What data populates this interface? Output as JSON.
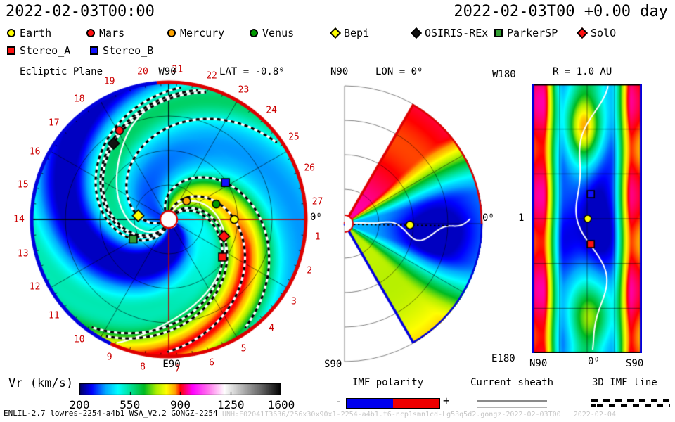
{
  "header": {
    "model_time": "2022-02-03T00:00",
    "forecast_time": "2022-02-03T00 +0.00 day"
  },
  "bodies": [
    {
      "label": "Earth",
      "marker": "circle",
      "color": "#ffff00",
      "imf": true,
      "ecl": {
        "r": 1.0,
        "lon": 0
      },
      "mer": {
        "r": 1.0,
        "lat": -0.8
      },
      "map": {
        "lon": 0,
        "lat": -1
      }
    },
    {
      "label": "Mars",
      "marker": "circle",
      "color": "#ff1111",
      "imf": true,
      "ecl": {
        "r": 1.55,
        "lon": 119
      }
    },
    {
      "label": "Mercury",
      "marker": "circle",
      "color": "#ffa500",
      "imf": false,
      "ecl": {
        "r": 0.39,
        "lon": 46
      }
    },
    {
      "label": "Venus",
      "marker": "circle",
      "color": "#009900",
      "imf": false,
      "ecl": {
        "r": 0.76,
        "lon": 18
      }
    },
    {
      "label": "Bepi",
      "marker": "diamond",
      "color": "#ffff00",
      "imf": true,
      "ecl": {
        "r": 0.47,
        "lon": 173
      }
    },
    {
      "label": "OSIRIS-REx",
      "marker": "diamond",
      "color": "#111111",
      "imf": true,
      "ecl": {
        "r": 1.43,
        "lon": 126
      }
    },
    {
      "label": "ParkerSP",
      "marker": "square",
      "color": "#33a033",
      "imf": true,
      "ecl": {
        "r": 0.62,
        "lon": 209
      }
    },
    {
      "label": "SolO",
      "marker": "diamond",
      "color": "#ff1111",
      "imf": true,
      "ecl": {
        "r": 0.88,
        "lon": -17
      }
    },
    {
      "label": "Stereo_A",
      "marker": "square",
      "color": "#ff1111",
      "imf": true,
      "ecl": {
        "r": 1.0,
        "lon": -35
      },
      "map": {
        "lon": -34,
        "lat": -6
      }
    },
    {
      "label": "Stereo_B",
      "marker": "square",
      "color": "#1111ff",
      "imf": true,
      "ecl": {
        "r": 1.03,
        "lon": 33
      },
      "map": {
        "lon": 33,
        "lat": -6
      }
    }
  ],
  "panels": {
    "ecliptic": {
      "title": "Ecliptic Plane",
      "top_label": "W90",
      "bottom_label": "E90",
      "lat_label": "LAT = -0.8⁰",
      "lon_zero_label": "0⁰"
    },
    "meridional": {
      "north_label": "N90",
      "title": "LON = 0⁰",
      "south_label": "S90",
      "lon_zero_label": "0⁰"
    },
    "synoptic": {
      "title": "R = 1.0 AU",
      "top_left_label": "W180",
      "bottom_left_label": "E180",
      "axis_labels": [
        "N90",
        "0⁰",
        "S90"
      ],
      "radius_tick": "1"
    }
  },
  "colorbar": {
    "label": "Vr (km/s)",
    "ticks": [
      "200",
      "550",
      "900",
      "1250",
      "1600"
    ]
  },
  "legend_boxes": {
    "imf": {
      "label": "IMF polarity",
      "minus": "-",
      "plus": "+",
      "neg_color": "#0000ee",
      "pos_color": "#ee0000"
    },
    "sheath": {
      "label": "Current sheath"
    },
    "imf_line": {
      "label": "3D IMF line"
    }
  },
  "footer": {
    "model_info": "ENLIL-2.7 lowres-2254-a4b1 WSA_V2.2 GONGZ-2254",
    "watermark": "UNH:E02041I3636/256x30x90x1-2254-a4b1.t6-ncp1smn1cd-Lg53q5d2.gongz-2022-02-03T00   2022-02-04"
  },
  "chart_data": [
    {
      "type": "heatmap",
      "projection": "polar-ecliptic",
      "title": "Ecliptic Plane",
      "quantity": "Vr",
      "units": "km/s",
      "vmin": 200,
      "vmax": 1600,
      "r_max_au": 2.1,
      "lat_deg": -0.8,
      "day_labels": [
        1,
        2,
        3,
        4,
        5,
        6,
        7,
        8,
        9,
        10,
        11,
        12,
        13,
        14,
        15,
        16,
        17,
        18,
        19,
        20,
        21,
        22,
        23,
        24,
        25,
        26,
        27
      ],
      "colorbar": {
        "label": "Vr (km/s)",
        "ticks": [
          200,
          550,
          900,
          1250,
          1600
        ]
      },
      "palette_stops": [
        [
          0.0,
          "#000066"
        ],
        [
          0.06,
          "#0000ff"
        ],
        [
          0.13,
          "#00aaff"
        ],
        [
          0.19,
          "#00ffff"
        ],
        [
          0.26,
          "#00dd88"
        ],
        [
          0.32,
          "#00bb22"
        ],
        [
          0.38,
          "#aaee00"
        ],
        [
          0.43,
          "#ffff00"
        ],
        [
          0.475,
          "#ffa000"
        ],
        [
          0.5,
          "#ff0000"
        ],
        [
          0.56,
          "#ff00ff"
        ],
        [
          0.64,
          "#ff77ee"
        ],
        [
          0.72,
          "#ffffff"
        ],
        [
          0.8,
          "#bbbbbb"
        ],
        [
          0.9,
          "#666666"
        ],
        [
          1.0,
          "#000000"
        ]
      ],
      "field": {
        "base": 345,
        "wrap": 1.55,
        "streams": [
          {
            "phase": 1.55,
            "width": 0.5,
            "amp": 520
          },
          {
            "phase": 4.3,
            "width": 0.45,
            "amp": 240
          },
          {
            "phase": 0.2,
            "width": 0.35,
            "amp": 150
          },
          {
            "phase": 5.3,
            "width": 0.5,
            "amp": -150
          }
        ]
      },
      "current_sheet": [
        {
          "theta0": 1.1,
          "wiggle": 0.28,
          "ph": 0.5
        },
        {
          "theta0": 4.25,
          "wiggle": 0.22,
          "ph": 2.0
        }
      ],
      "boundary_polarity": {
        "blue_arc_deg": [
          115,
          265
        ],
        "red_arc_deg": [
          265,
          475
        ]
      }
    },
    {
      "type": "heatmap",
      "projection": "meridional-wedge",
      "title": "LON = 0",
      "lat_extent_deg": [
        -60,
        60
      ],
      "r_max_au": 2.1,
      "field": {
        "base": 360,
        "north_amp": 560,
        "south_amp": 330,
        "south_radial": 140,
        "eq_dip": {
          "lat": -5,
          "r": 1.35,
          "amp": -150,
          "wlat": 12,
          "wr": 0.4
        }
      }
    },
    {
      "type": "heatmap",
      "projection": "lat-lon-synoptic",
      "title": "R = 1.0 AU",
      "r_au": 1.0,
      "field": {
        "base": 340,
        "polar_amp": 560,
        "bumps": [
          {
            "lon": 120,
            "lat": 5,
            "amp": 500,
            "wlon": 34,
            "wlat": 22
          },
          {
            "lon": -135,
            "lat": -5,
            "amp": 380,
            "wlon": 32,
            "wlat": 26
          },
          {
            "lon": 15,
            "lat": -8,
            "amp": -150,
            "wlon": 42,
            "wlat": 24
          }
        ]
      }
    }
  ]
}
